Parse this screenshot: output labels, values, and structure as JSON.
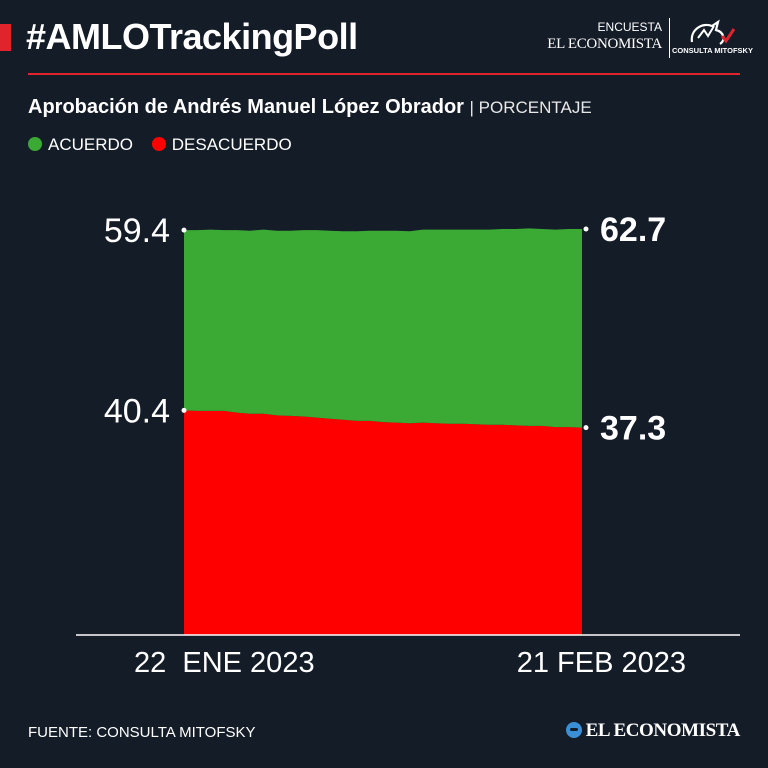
{
  "header": {
    "hashtag": "#AMLOTrackingPoll",
    "brand_encuesta": "ENCUESTA",
    "brand_economista": "EL ECONOMISTA",
    "brand_mitofsky": "CONSULTA MITOFSKY"
  },
  "footer": {
    "source": "FUENTE: CONSULTA MITOFSKY",
    "logo_text": "EL ECONOMISTA"
  },
  "colors": {
    "acuerdo": "#3aaa35",
    "desacuerdo": "#ff0000",
    "accent": "#e0242c",
    "background": "#141c28"
  },
  "chart_data": {
    "type": "area",
    "title": "Aprobación de Andrés Manuel López Obrador",
    "unit": "PORCENTAJE",
    "stacked": true,
    "x_start_label": "22  ENE 2023",
    "x_end_label": "21 FEB 2023",
    "series": [
      {
        "name": "ACUERDO",
        "color": "#3aaa35",
        "start_label": "59.4",
        "end_label": "62.7",
        "values": [
          59.4,
          59.5,
          59.6,
          59.5,
          59.8,
          59.9,
          60.1,
          60.2,
          60.3,
          60.5,
          60.7,
          60.8,
          60.9,
          61.1,
          61.2,
          61.4,
          61.5,
          61.5,
          61.7,
          61.8,
          61.9,
          61.9,
          62.0,
          62.1,
          62.2,
          62.3,
          62.5,
          62.4,
          62.5,
          62.6,
          62.7
        ]
      },
      {
        "name": "DESACUERDO",
        "color": "#ff0000",
        "start_label": "40.4",
        "end_label": "37.3",
        "values": [
          40.4,
          40.3,
          40.3,
          40.3,
          40.0,
          39.8,
          39.8,
          39.5,
          39.4,
          39.3,
          39.1,
          38.9,
          38.7,
          38.5,
          38.5,
          38.3,
          38.2,
          38.1,
          38.2,
          38.1,
          38.0,
          38.0,
          37.9,
          37.8,
          37.8,
          37.7,
          37.6,
          37.6,
          37.4,
          37.4,
          37.3
        ]
      }
    ]
  }
}
